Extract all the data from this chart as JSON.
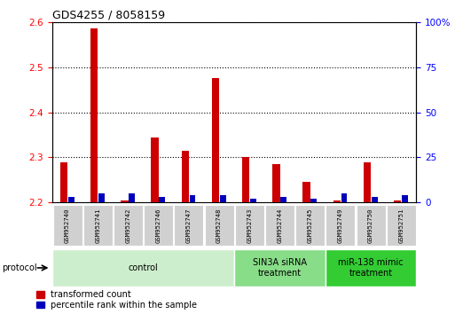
{
  "title": "GDS4255 / 8058159",
  "samples": [
    "GSM952740",
    "GSM952741",
    "GSM952742",
    "GSM952746",
    "GSM952747",
    "GSM952748",
    "GSM952743",
    "GSM952744",
    "GSM952745",
    "GSM952749",
    "GSM952750",
    "GSM952751"
  ],
  "red_values": [
    2.29,
    2.585,
    2.205,
    2.345,
    2.315,
    2.475,
    2.3,
    2.285,
    2.245,
    2.205,
    2.29,
    2.205
  ],
  "blue_pct": [
    3,
    5,
    5,
    3,
    4,
    4,
    2,
    3,
    2,
    5,
    3,
    4
  ],
  "ylim_left": [
    2.2,
    2.6
  ],
  "ylim_right": [
    0,
    100
  ],
  "yticks_left": [
    2.2,
    2.3,
    2.4,
    2.5,
    2.6
  ],
  "yticks_right": [
    0,
    25,
    50,
    75,
    100
  ],
  "baseline": 2.2,
  "groups": [
    {
      "label": "control",
      "start": 0,
      "end": 6,
      "color": "#cceecc"
    },
    {
      "label": "SIN3A siRNA\ntreatment",
      "start": 6,
      "end": 9,
      "color": "#88dd88"
    },
    {
      "label": "miR-138 mimic\ntreatment",
      "start": 9,
      "end": 12,
      "color": "#33cc33"
    }
  ],
  "red_color": "#cc0000",
  "blue_color": "#0000bb",
  "legend_red": "transformed count",
  "legend_blue": "percentile rank within the sample"
}
